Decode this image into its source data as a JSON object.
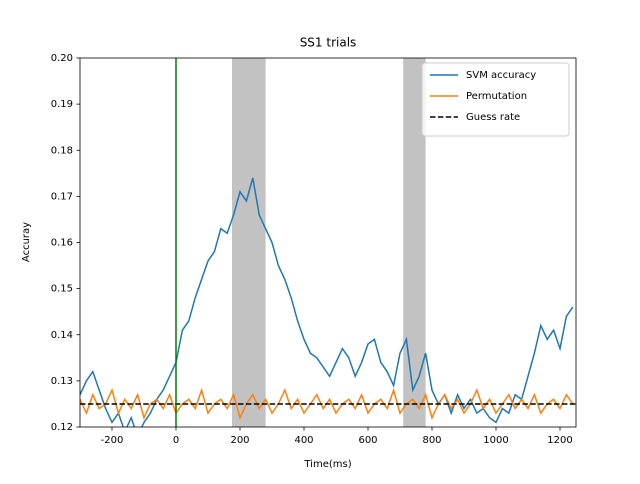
{
  "chart_data": {
    "type": "line",
    "title": "SS1 trials",
    "xlabel": "Time(ms)",
    "ylabel": "Accuray",
    "x": [
      -300,
      -280,
      -260,
      -240,
      -220,
      -200,
      -180,
      -160,
      -140,
      -120,
      -100,
      -80,
      -60,
      -40,
      -20,
      0,
      20,
      40,
      60,
      80,
      100,
      120,
      140,
      160,
      180,
      200,
      220,
      240,
      260,
      280,
      300,
      320,
      340,
      360,
      380,
      400,
      420,
      440,
      460,
      480,
      500,
      520,
      540,
      560,
      580,
      600,
      620,
      640,
      660,
      680,
      700,
      720,
      740,
      760,
      780,
      800,
      820,
      840,
      860,
      880,
      900,
      920,
      940,
      960,
      980,
      1000,
      1020,
      1040,
      1060,
      1080,
      1100,
      1120,
      1140,
      1160,
      1180,
      1200,
      1220,
      1240
    ],
    "series": [
      {
        "name": "SVM accuracy",
        "color": "#1f77b4",
        "values": [
          0.127,
          0.13,
          0.132,
          0.128,
          0.124,
          0.121,
          0.123,
          0.119,
          0.122,
          0.118,
          0.121,
          0.123,
          0.126,
          0.128,
          0.131,
          0.134,
          0.141,
          0.143,
          0.148,
          0.152,
          0.156,
          0.158,
          0.163,
          0.162,
          0.166,
          0.171,
          0.169,
          0.174,
          0.166,
          0.163,
          0.16,
          0.155,
          0.152,
          0.148,
          0.143,
          0.139,
          0.136,
          0.135,
          0.133,
          0.131,
          0.134,
          0.137,
          0.135,
          0.131,
          0.134,
          0.138,
          0.139,
          0.134,
          0.132,
          0.129,
          0.136,
          0.139,
          0.128,
          0.131,
          0.136,
          0.128,
          0.125,
          0.127,
          0.123,
          0.127,
          0.124,
          0.126,
          0.123,
          0.124,
          0.122,
          0.121,
          0.124,
          0.123,
          0.127,
          0.126,
          0.131,
          0.136,
          0.142,
          0.139,
          0.141,
          0.137,
          0.144,
          0.146
        ]
      },
      {
        "name": "Permutation",
        "color": "#ff7f0e",
        "values": [
          0.126,
          0.123,
          0.127,
          0.124,
          0.125,
          0.128,
          0.123,
          0.126,
          0.124,
          0.127,
          0.122,
          0.125,
          0.126,
          0.124,
          0.127,
          0.123,
          0.125,
          0.126,
          0.124,
          0.128,
          0.123,
          0.125,
          0.126,
          0.124,
          0.127,
          0.122,
          0.125,
          0.127,
          0.124,
          0.126,
          0.123,
          0.125,
          0.128,
          0.124,
          0.126,
          0.123,
          0.125,
          0.127,
          0.124,
          0.126,
          0.123,
          0.125,
          0.126,
          0.124,
          0.127,
          0.123,
          0.125,
          0.126,
          0.124,
          0.128,
          0.123,
          0.125,
          0.126,
          0.124,
          0.127,
          0.122,
          0.125,
          0.127,
          0.124,
          0.126,
          0.123,
          0.125,
          0.128,
          0.124,
          0.126,
          0.123,
          0.125,
          0.127,
          0.124,
          0.126,
          0.124,
          0.127,
          0.123,
          0.125,
          0.126,
          0.124,
          0.127,
          0.125
        ]
      }
    ],
    "hline": {
      "name": "Guess rate",
      "value": 0.125,
      "color": "#000000"
    },
    "vline": {
      "value": 0,
      "color": "#008000"
    },
    "shaded_regions": [
      [
        175,
        280
      ],
      [
        710,
        780
      ]
    ],
    "xlim": [
      -300,
      1250
    ],
    "ylim": [
      0.12,
      0.2
    ],
    "xticks": [
      -200,
      0,
      200,
      400,
      600,
      800,
      1000,
      1200
    ],
    "yticks": [
      0.12,
      0.13,
      0.14,
      0.15,
      0.16,
      0.17,
      0.18,
      0.19,
      {
        "value": 0.2,
        "label": "0.20"
      }
    ],
    "legend": "upper right"
  }
}
